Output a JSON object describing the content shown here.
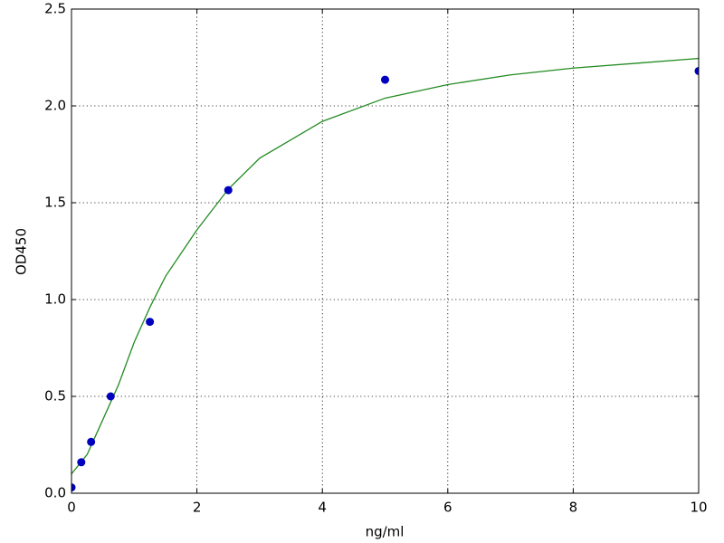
{
  "chart_data": {
    "type": "scatter",
    "x_label": "ng/ml",
    "y_label": "OD450",
    "xlim": [
      0,
      10
    ],
    "xticks": [
      0,
      2,
      4,
      6,
      8,
      10
    ],
    "ylim": [
      0,
      2.5
    ],
    "yticks": [
      {
        "value": 0,
        "label": "0.0"
      },
      0.5,
      {
        "value": 1,
        "label": "1.0"
      },
      1.5,
      {
        "value": 2,
        "label": "2.0"
      },
      2.5
    ],
    "grid": true,
    "series": [
      {
        "style": "line",
        "color": "#228b22",
        "x": [
          0,
          0.25,
          0.5,
          0.75,
          1,
          1.25,
          1.5,
          2,
          2.5,
          3,
          4,
          5,
          6,
          7,
          8,
          9,
          10
        ],
        "values": [
          0.1,
          0.2,
          0.38,
          0.56,
          0.78,
          0.96,
          1.12,
          1.36,
          1.57,
          1.73,
          1.92,
          2.04,
          2.11,
          2.16,
          2.195,
          2.22,
          2.245
        ]
      },
      {
        "style": "markers",
        "color": "#0000bf",
        "x": [
          0,
          0.156,
          0.3125,
          0.625,
          1.25,
          2.5,
          5,
          10
        ],
        "values": [
          0.03,
          0.16,
          0.265,
          0.5,
          0.885,
          1.565,
          2.135,
          2.18
        ]
      }
    ]
  }
}
